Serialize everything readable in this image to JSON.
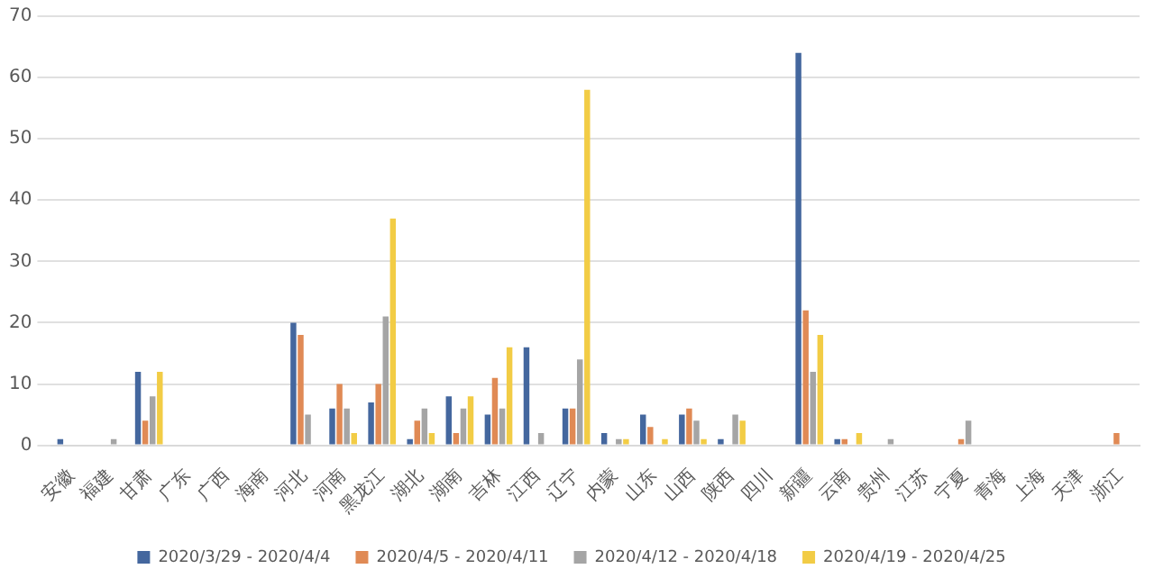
{
  "chart_data": {
    "type": "bar",
    "categories": [
      "安徽",
      "福建",
      "甘肃",
      "广东",
      "广西",
      "海南",
      "河北",
      "河南",
      "黑龙江",
      "湖北",
      "湖南",
      "吉林",
      "江西",
      "辽宁",
      "内蒙",
      "山东",
      "山西",
      "陕西",
      "四川",
      "新疆",
      "云南",
      "贵州",
      "江苏",
      "宁夏",
      "青海",
      "上海",
      "天津",
      "浙江"
    ],
    "series": [
      {
        "name": "2020/3/29 - 2020/4/4",
        "color": "#44679e",
        "values": [
          1,
          0,
          12,
          0,
          0,
          0,
          20,
          6,
          7,
          1,
          8,
          5,
          16,
          6,
          2,
          5,
          5,
          1,
          0,
          64,
          1,
          0,
          0,
          0,
          0,
          0,
          0,
          0
        ]
      },
      {
        "name": "2020/4/5 - 2020/4/11",
        "color": "#e08a55",
        "values": [
          0,
          0,
          4,
          0,
          0,
          0,
          18,
          10,
          10,
          4,
          2,
          11,
          0,
          6,
          0,
          3,
          6,
          0,
          0,
          22,
          1,
          0,
          0,
          1,
          0,
          0,
          0,
          2
        ]
      },
      {
        "name": "2020/4/12 - 2020/4/18",
        "color": "#a5a5a5",
        "values": [
          0,
          1,
          8,
          0,
          0,
          0,
          5,
          6,
          21,
          6,
          6,
          6,
          2,
          14,
          1,
          0,
          4,
          5,
          0,
          12,
          0,
          1,
          0,
          4,
          0,
          0,
          0,
          0
        ]
      },
      {
        "name": "2020/4/19 - 2020/4/25",
        "color": "#f2cc45",
        "values": [
          0,
          0,
          12,
          0,
          0,
          0,
          0,
          2,
          37,
          2,
          8,
          16,
          0,
          58,
          1,
          1,
          1,
          4,
          0,
          18,
          2,
          0,
          0,
          0,
          0,
          0,
          0,
          0
        ]
      }
    ],
    "ylim": [
      0,
      70
    ],
    "yticks": [
      0,
      10,
      20,
      30,
      40,
      50,
      60,
      70
    ],
    "grid": "y",
    "legend": "bottom"
  }
}
